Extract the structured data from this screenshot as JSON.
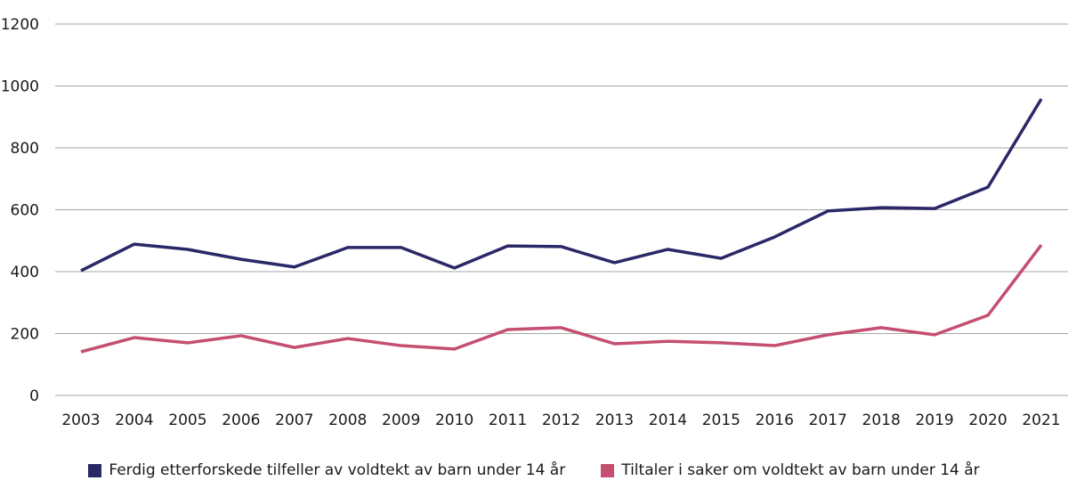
{
  "chart_data": {
    "type": "line",
    "title": "",
    "xlabel": "",
    "ylabel": "",
    "ylim": [
      0,
      1200
    ],
    "yticks": [
      0,
      200,
      400,
      600,
      800,
      1000,
      1200
    ],
    "grid": true,
    "legend_position": "bottom",
    "x": [
      "2003",
      "2004",
      "2005",
      "2006",
      "2007",
      "2008",
      "2009",
      "2010",
      "2011",
      "2012",
      "2013",
      "2014",
      "2015",
      "2016",
      "2017",
      "2018",
      "2019",
      "2020",
      "2021"
    ],
    "series": [
      {
        "name": "Ferdig etterforskede tilfeller av voldtekt av barn under 14 år",
        "color": "#2b2867",
        "values": [
          403,
          489,
          472,
          440,
          415,
          478,
          478,
          412,
          483,
          481,
          429,
          472,
          443,
          512,
          596,
          607,
          604,
          673,
          958
        ]
      },
      {
        "name": "Tiltaler i saker om voldtekt av barn under 14 år",
        "color": "#c44f70",
        "values": [
          141,
          187,
          170,
          193,
          155,
          184,
          161,
          150,
          213,
          219,
          167,
          175,
          170,
          161,
          196,
          219,
          196,
          259,
          486
        ]
      }
    ]
  }
}
